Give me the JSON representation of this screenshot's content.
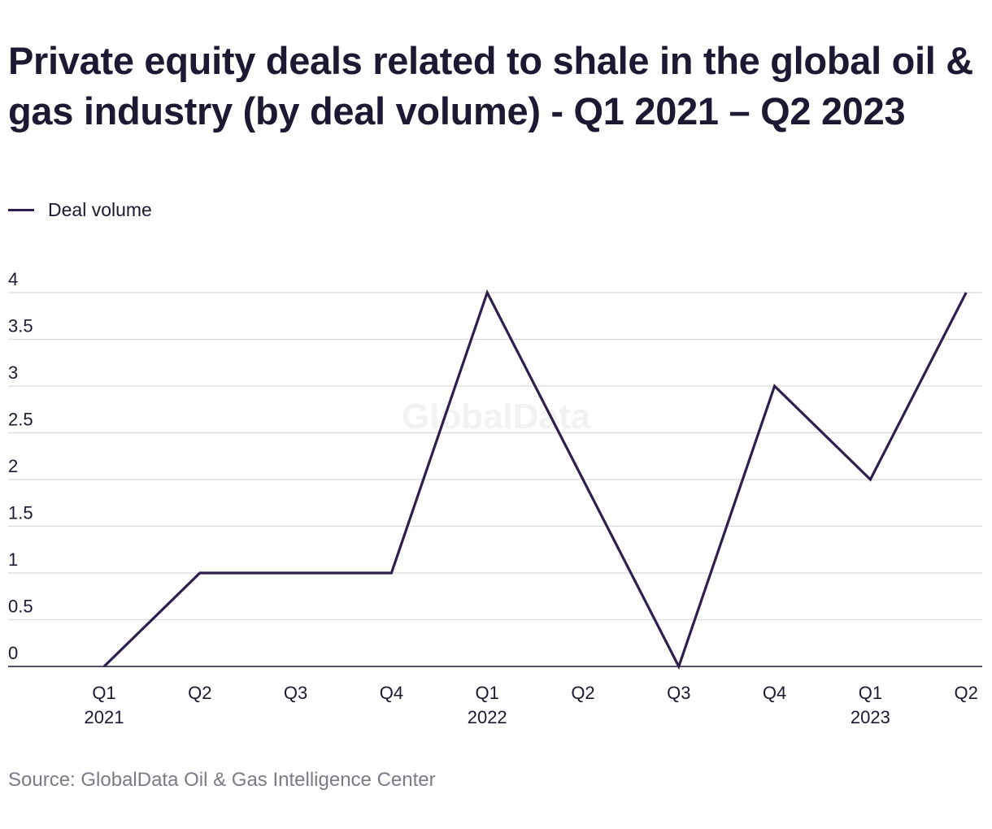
{
  "chart_data": {
    "type": "line",
    "title": "Private equity deals related to shale in the global oil & gas industry (by deal volume) - Q1 2021 – Q2 2023",
    "categories": [
      "Q1 2021",
      "Q2 2021",
      "Q3 2021",
      "Q4 2021",
      "Q1 2022",
      "Q2 2022",
      "Q3 2022",
      "Q4 2022",
      "Q1 2023",
      "Q2 2023"
    ],
    "x_tick_labels": [
      {
        "quarter": "Q1",
        "year": "2021"
      },
      {
        "quarter": "Q2",
        "year": ""
      },
      {
        "quarter": "Q3",
        "year": ""
      },
      {
        "quarter": "Q4",
        "year": ""
      },
      {
        "quarter": "Q1",
        "year": "2022"
      },
      {
        "quarter": "Q2",
        "year": ""
      },
      {
        "quarter": "Q3",
        "year": ""
      },
      {
        "quarter": "Q4",
        "year": ""
      },
      {
        "quarter": "Q1",
        "year": "2023"
      },
      {
        "quarter": "Q2",
        "year": ""
      }
    ],
    "series": [
      {
        "name": "Deal volume",
        "values": [
          0,
          1,
          1,
          1,
          4,
          2,
          0,
          3,
          2,
          4
        ],
        "color": "#2e1f4f"
      }
    ],
    "y_ticks": [
      "0",
      "0.5",
      "1",
      "1.5",
      "2",
      "2.5",
      "3",
      "3.5",
      "4"
    ],
    "ylim": [
      0,
      4
    ],
    "xlabel": "",
    "ylabel": "",
    "grid": true,
    "legend_position": "top-left",
    "source": "Source: GlobalData Oil & Gas Intelligence Center",
    "watermark": "GlobalData"
  }
}
